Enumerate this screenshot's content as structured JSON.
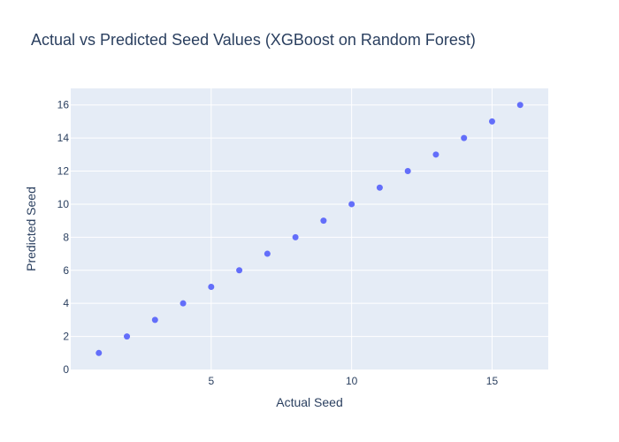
{
  "chart_data": {
    "type": "scatter",
    "title": "Actual vs Predicted Seed Values (XGBoost on Random Forest)",
    "xlabel": "Actual Seed",
    "ylabel": "Predicted Seed",
    "xlim": [
      0,
      17
    ],
    "ylim": [
      0,
      17
    ],
    "x_ticks": [
      5,
      10,
      15
    ],
    "y_ticks": [
      0,
      2,
      4,
      6,
      8,
      10,
      12,
      14,
      16
    ],
    "grid": true,
    "legend": "none",
    "series": [
      {
        "x": [
          1,
          2,
          3,
          4,
          5,
          6,
          7,
          8,
          9,
          10,
          11,
          12,
          13,
          14,
          15,
          16
        ],
        "y": [
          1,
          2,
          3,
          4,
          5,
          6,
          7,
          8,
          9,
          10,
          11,
          12,
          13,
          14,
          15,
          16
        ]
      }
    ],
    "colors": {
      "plot_background": "#e5ecf6",
      "grid": "#ffffff",
      "marker": "#636efa",
      "text": "#2a3f5f"
    }
  }
}
